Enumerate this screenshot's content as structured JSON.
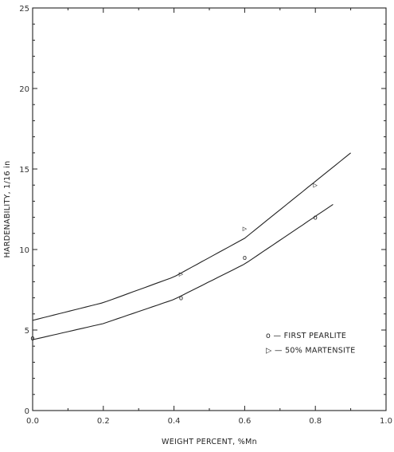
{
  "chart_data": {
    "type": "scatter",
    "xlabel": "WEIGHT PERCENT, %Mn",
    "ylabel": "HARDENABILITY, 1/16 in",
    "xlim": [
      0.0,
      1.0
    ],
    "ylim": [
      0,
      25
    ],
    "x_ticks": [
      "0.0",
      "0.2",
      "0.4",
      "0.6",
      "0.8",
      "1.0"
    ],
    "y_ticks": [
      "0",
      "5",
      "10",
      "15",
      "20",
      "25"
    ],
    "grid": false,
    "legend_position": "lower-right",
    "series": [
      {
        "name": "FIRST PEARLITE",
        "marker": "circle",
        "symbol": "o",
        "label_prefix": "o — ",
        "points": [
          [
            0.0,
            4.5
          ],
          [
            0.42,
            7.0
          ],
          [
            0.6,
            9.5
          ],
          [
            0.8,
            12.0
          ]
        ],
        "fit": {
          "x_start": 0.0,
          "x_end": 0.85,
          "curve": [
            [
              0.0,
              4.4
            ],
            [
              0.2,
              5.4
            ],
            [
              0.4,
              6.9
            ],
            [
              0.6,
              9.1
            ],
            [
              0.85,
              12.8
            ]
          ]
        }
      },
      {
        "name": "50% MARTENSITE",
        "marker": "triangle",
        "symbol": "▷",
        "label_prefix": "▷ — ",
        "points": [
          [
            0.42,
            8.5
          ],
          [
            0.6,
            11.3
          ],
          [
            0.8,
            14.0
          ]
        ],
        "fit": {
          "x_start": 0.0,
          "x_end": 0.9,
          "curve": [
            [
              0.0,
              5.6
            ],
            [
              0.2,
              6.7
            ],
            [
              0.4,
              8.3
            ],
            [
              0.6,
              10.7
            ],
            [
              0.9,
              16.0
            ]
          ]
        }
      }
    ]
  }
}
